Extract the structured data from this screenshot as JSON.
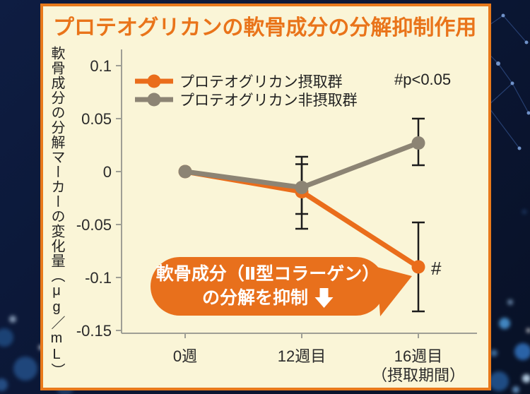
{
  "title": "プロテオグリカンの軟骨成分の分解抑制作用",
  "chart_data": {
    "type": "line",
    "categories": [
      "0週",
      "12週目",
      "16週目"
    ],
    "x_axis_note": "（摂取期間）",
    "ylabel": "軟骨成分の分解マーカーの変化量（μg／mL）",
    "yticks": [
      0.1,
      0.05,
      0,
      -0.05,
      -0.1,
      -0.15
    ],
    "ylim": [
      -0.153,
      0.115
    ],
    "grid": false,
    "legend_position": "top-left-inside",
    "series": [
      {
        "name": "プロテオグリカン摂取群",
        "color": "#ea6d1b",
        "values": [
          0,
          -0.019,
          -0.09
        ],
        "error_ranges": [
          null,
          [
            -0.054,
            0.007
          ],
          [
            -0.132,
            -0.048
          ]
        ]
      },
      {
        "name": "プロテオグリカン非摂取群",
        "color": "#8c8474",
        "values": [
          0,
          -0.015,
          0.027
        ],
        "error_ranges": [
          null,
          [
            -0.04,
            0.014
          ],
          [
            0.006,
            0.05
          ]
        ]
      }
    ],
    "significance_note": "#p<0.05",
    "significance_marker": "#",
    "significance_marker_at": {
      "series": "プロテオグリカン摂取群",
      "category": "16週目"
    }
  },
  "annotation": {
    "line1": "軟骨成分（Ⅱ型コラーゲン）",
    "line2": "の分解を抑制",
    "arrow_icon": "down-arrow"
  },
  "colors": {
    "page_bg": "#0b1736",
    "card_bg": "#faf5d7",
    "card_border": "#e8791b",
    "title": "#e9741a",
    "bubble": "#e8701c",
    "series_orange": "#ea6d1b",
    "series_gray": "#8c8474",
    "error_bar": "#1c1c1c",
    "axis": "#9f9f95",
    "text": "#222222"
  }
}
